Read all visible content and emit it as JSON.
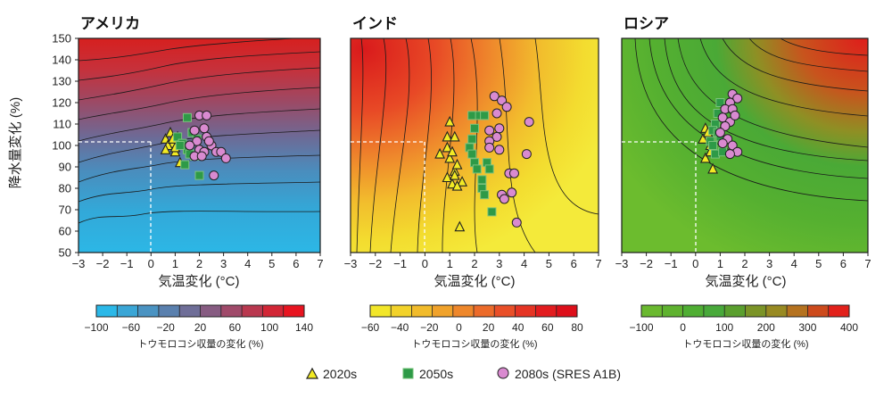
{
  "y_axis_label": "降水量変化 (%)",
  "x_axis_label": "気温変化 (°C)",
  "x_ticks": [
    "−3",
    "−2",
    "−1",
    "0",
    "1",
    "2",
    "3",
    "4",
    "5",
    "6",
    "7"
  ],
  "y_ticks": [
    "50",
    "60",
    "70",
    "80",
    "90",
    "100",
    "110",
    "120",
    "130",
    "140",
    "150"
  ],
  "colorbar_label": "トウモロコシ収量の変化 (%)",
  "legend": [
    {
      "label": "2020s",
      "marker": "triangle",
      "color": "#f2ea24"
    },
    {
      "label": "2050s",
      "marker": "square",
      "color": "#2e9a47"
    },
    {
      "label": "2080s (SRES A1B)",
      "marker": "circle",
      "color": "#d98ad0"
    }
  ],
  "chart_data": [
    {
      "type": "scatter",
      "title": "アメリカ",
      "xlabel": "気温変化 (°C)",
      "ylabel": "降水量変化 (%)",
      "xlim": [
        -3,
        7
      ],
      "ylim": [
        50,
        150
      ],
      "reference_point": {
        "x": 0,
        "y": 100
      },
      "colorbar": {
        "ticks": [
          "−100",
          "−60",
          "−20",
          "20",
          "60",
          "100",
          "140"
        ],
        "colors": [
          "#2bb8e8",
          "#3aa6d6",
          "#4a93c2",
          "#5a80ae",
          "#6f6e98",
          "#875c82",
          "#a04a6a",
          "#b9384f",
          "#d22636",
          "#e81420"
        ]
      },
      "series": [
        {
          "name": "2020s",
          "points": [
            [
              0.6,
              103
            ],
            [
              0.8,
              106
            ],
            [
              0.9,
              101
            ],
            [
              1.0,
              97
            ],
            [
              1.1,
              104
            ],
            [
              1.2,
              92
            ],
            [
              0.7,
              100
            ],
            [
              1.0,
              99
            ],
            [
              0.9,
              103
            ],
            [
              0.6,
              98
            ]
          ]
        },
        {
          "name": "2050s",
          "points": [
            [
              1.5,
              113
            ],
            [
              1.1,
              104
            ],
            [
              1.3,
              101
            ],
            [
              1.5,
              98
            ],
            [
              1.7,
              106
            ],
            [
              1.9,
              103
            ],
            [
              1.8,
              95
            ],
            [
              2.0,
              86
            ],
            [
              1.4,
              91
            ],
            [
              1.6,
              96
            ],
            [
              1.2,
              100
            ]
          ]
        },
        {
          "name": "2080s (SRES A1B)",
          "points": [
            [
              2.0,
              114
            ],
            [
              2.3,
              114
            ],
            [
              1.8,
              107
            ],
            [
              2.2,
              108
            ],
            [
              1.9,
              102
            ],
            [
              2.3,
              104
            ],
            [
              2.5,
              100
            ],
            [
              1.6,
              100
            ],
            [
              2.0,
              98
            ],
            [
              1.8,
              95
            ],
            [
              2.7,
              97
            ],
            [
              2.2,
              97
            ],
            [
              2.9,
              97
            ],
            [
              3.1,
              94
            ],
            [
              2.6,
              86
            ],
            [
              2.1,
              95
            ],
            [
              2.4,
              102
            ]
          ]
        }
      ]
    },
    {
      "type": "scatter",
      "title": "インド",
      "xlabel": "気温変化 (°C)",
      "ylabel": "降水量変化 (%)",
      "xlim": [
        -3,
        7
      ],
      "ylim": [
        50,
        150
      ],
      "reference_point": {
        "x": 0,
        "y": 100
      },
      "colorbar": {
        "ticks": [
          "−60",
          "−40",
          "−20",
          "0",
          "20",
          "40",
          "60",
          "80"
        ],
        "colors": [
          "#f2e629",
          "#f2d22a",
          "#f1bb2b",
          "#f0a22b",
          "#ee872b",
          "#ec6b2a",
          "#e94f28",
          "#e53424",
          "#e21c1f",
          "#dd0f1a"
        ]
      },
      "series": [
        {
          "name": "2020s",
          "points": [
            [
              0.9,
              104
            ],
            [
              1.0,
              111
            ],
            [
              1.2,
              104
            ],
            [
              0.9,
              99
            ],
            [
              1.0,
              94
            ],
            [
              1.2,
              88
            ],
            [
              0.9,
              85
            ],
            [
              1.1,
              82
            ],
            [
              1.5,
              83
            ],
            [
              1.3,
              81
            ],
            [
              0.6,
              96
            ],
            [
              1.4,
              62
            ],
            [
              1.1,
              97
            ],
            [
              1.3,
              91
            ],
            [
              1.2,
              86
            ]
          ]
        },
        {
          "name": "2050s",
          "points": [
            [
              1.9,
              114
            ],
            [
              2.2,
              114
            ],
            [
              2.0,
              108
            ],
            [
              1.9,
              103
            ],
            [
              1.8,
              99
            ],
            [
              1.9,
              96
            ],
            [
              2.0,
              92
            ],
            [
              2.1,
              89
            ],
            [
              2.3,
              84
            ],
            [
              2.3,
              80
            ],
            [
              2.4,
              77
            ],
            [
              2.5,
              92
            ],
            [
              2.6,
              89
            ],
            [
              2.7,
              69
            ],
            [
              2.4,
              114
            ]
          ]
        },
        {
          "name": "2080s (SRES A1B)",
          "points": [
            [
              2.8,
              123
            ],
            [
              3.1,
              121
            ],
            [
              3.3,
              118
            ],
            [
              2.9,
              115
            ],
            [
              3.0,
              108
            ],
            [
              2.6,
              107
            ],
            [
              2.9,
              104
            ],
            [
              2.6,
              102
            ],
            [
              3.0,
              98
            ],
            [
              2.6,
              99
            ],
            [
              3.4,
              87
            ],
            [
              3.6,
              87
            ],
            [
              3.1,
              77
            ],
            [
              3.5,
              78
            ],
            [
              3.2,
              75
            ],
            [
              4.1,
              96
            ],
            [
              4.2,
              111
            ],
            [
              3.7,
              64
            ]
          ]
        }
      ]
    },
    {
      "type": "scatter",
      "title": "ロシア",
      "xlabel": "気温変化 (°C)",
      "ylabel": "降水量変化 (%)",
      "xlim": [
        -3,
        7
      ],
      "ylim": [
        50,
        150
      ],
      "reference_point": {
        "x": 0,
        "y": 100
      },
      "colorbar": {
        "ticks": [
          "−100",
          "0",
          "100",
          "200",
          "300",
          "400"
        ],
        "colors": [
          "#6ab92f",
          "#5fb22f",
          "#4fae33",
          "#48a93a",
          "#5a9f2e",
          "#7b9427",
          "#988a22",
          "#b5721f",
          "#cd4a1c",
          "#e2211b"
        ]
      },
      "series": [
        {
          "name": "2020s",
          "points": [
            [
              0.4,
              108
            ],
            [
              0.5,
              104
            ],
            [
              0.6,
              100
            ],
            [
              0.3,
              103
            ],
            [
              0.4,
              94
            ],
            [
              0.7,
              89
            ],
            [
              0.5,
              106
            ],
            [
              0.6,
              97
            ]
          ]
        },
        {
          "name": "2050s",
          "points": [
            [
              1.0,
              120
            ],
            [
              0.9,
              115
            ],
            [
              0.8,
              110
            ],
            [
              0.7,
              107
            ],
            [
              0.9,
              106
            ],
            [
              1.0,
              104
            ],
            [
              0.6,
              102
            ],
            [
              0.8,
              96
            ],
            [
              1.1,
              97
            ],
            [
              0.7,
              100
            ]
          ]
        },
        {
          "name": "2080s (SRES A1B)",
          "points": [
            [
              1.5,
              124
            ],
            [
              1.7,
              122
            ],
            [
              1.4,
              120
            ],
            [
              1.2,
              117
            ],
            [
              1.5,
              117
            ],
            [
              1.1,
              113
            ],
            [
              1.4,
              111
            ],
            [
              1.2,
              109
            ],
            [
              1.0,
              106
            ],
            [
              1.3,
              103
            ],
            [
              1.5,
              100
            ],
            [
              1.7,
              97
            ],
            [
              1.1,
              101
            ],
            [
              1.4,
              96
            ],
            [
              1.6,
              114
            ]
          ]
        }
      ]
    }
  ]
}
